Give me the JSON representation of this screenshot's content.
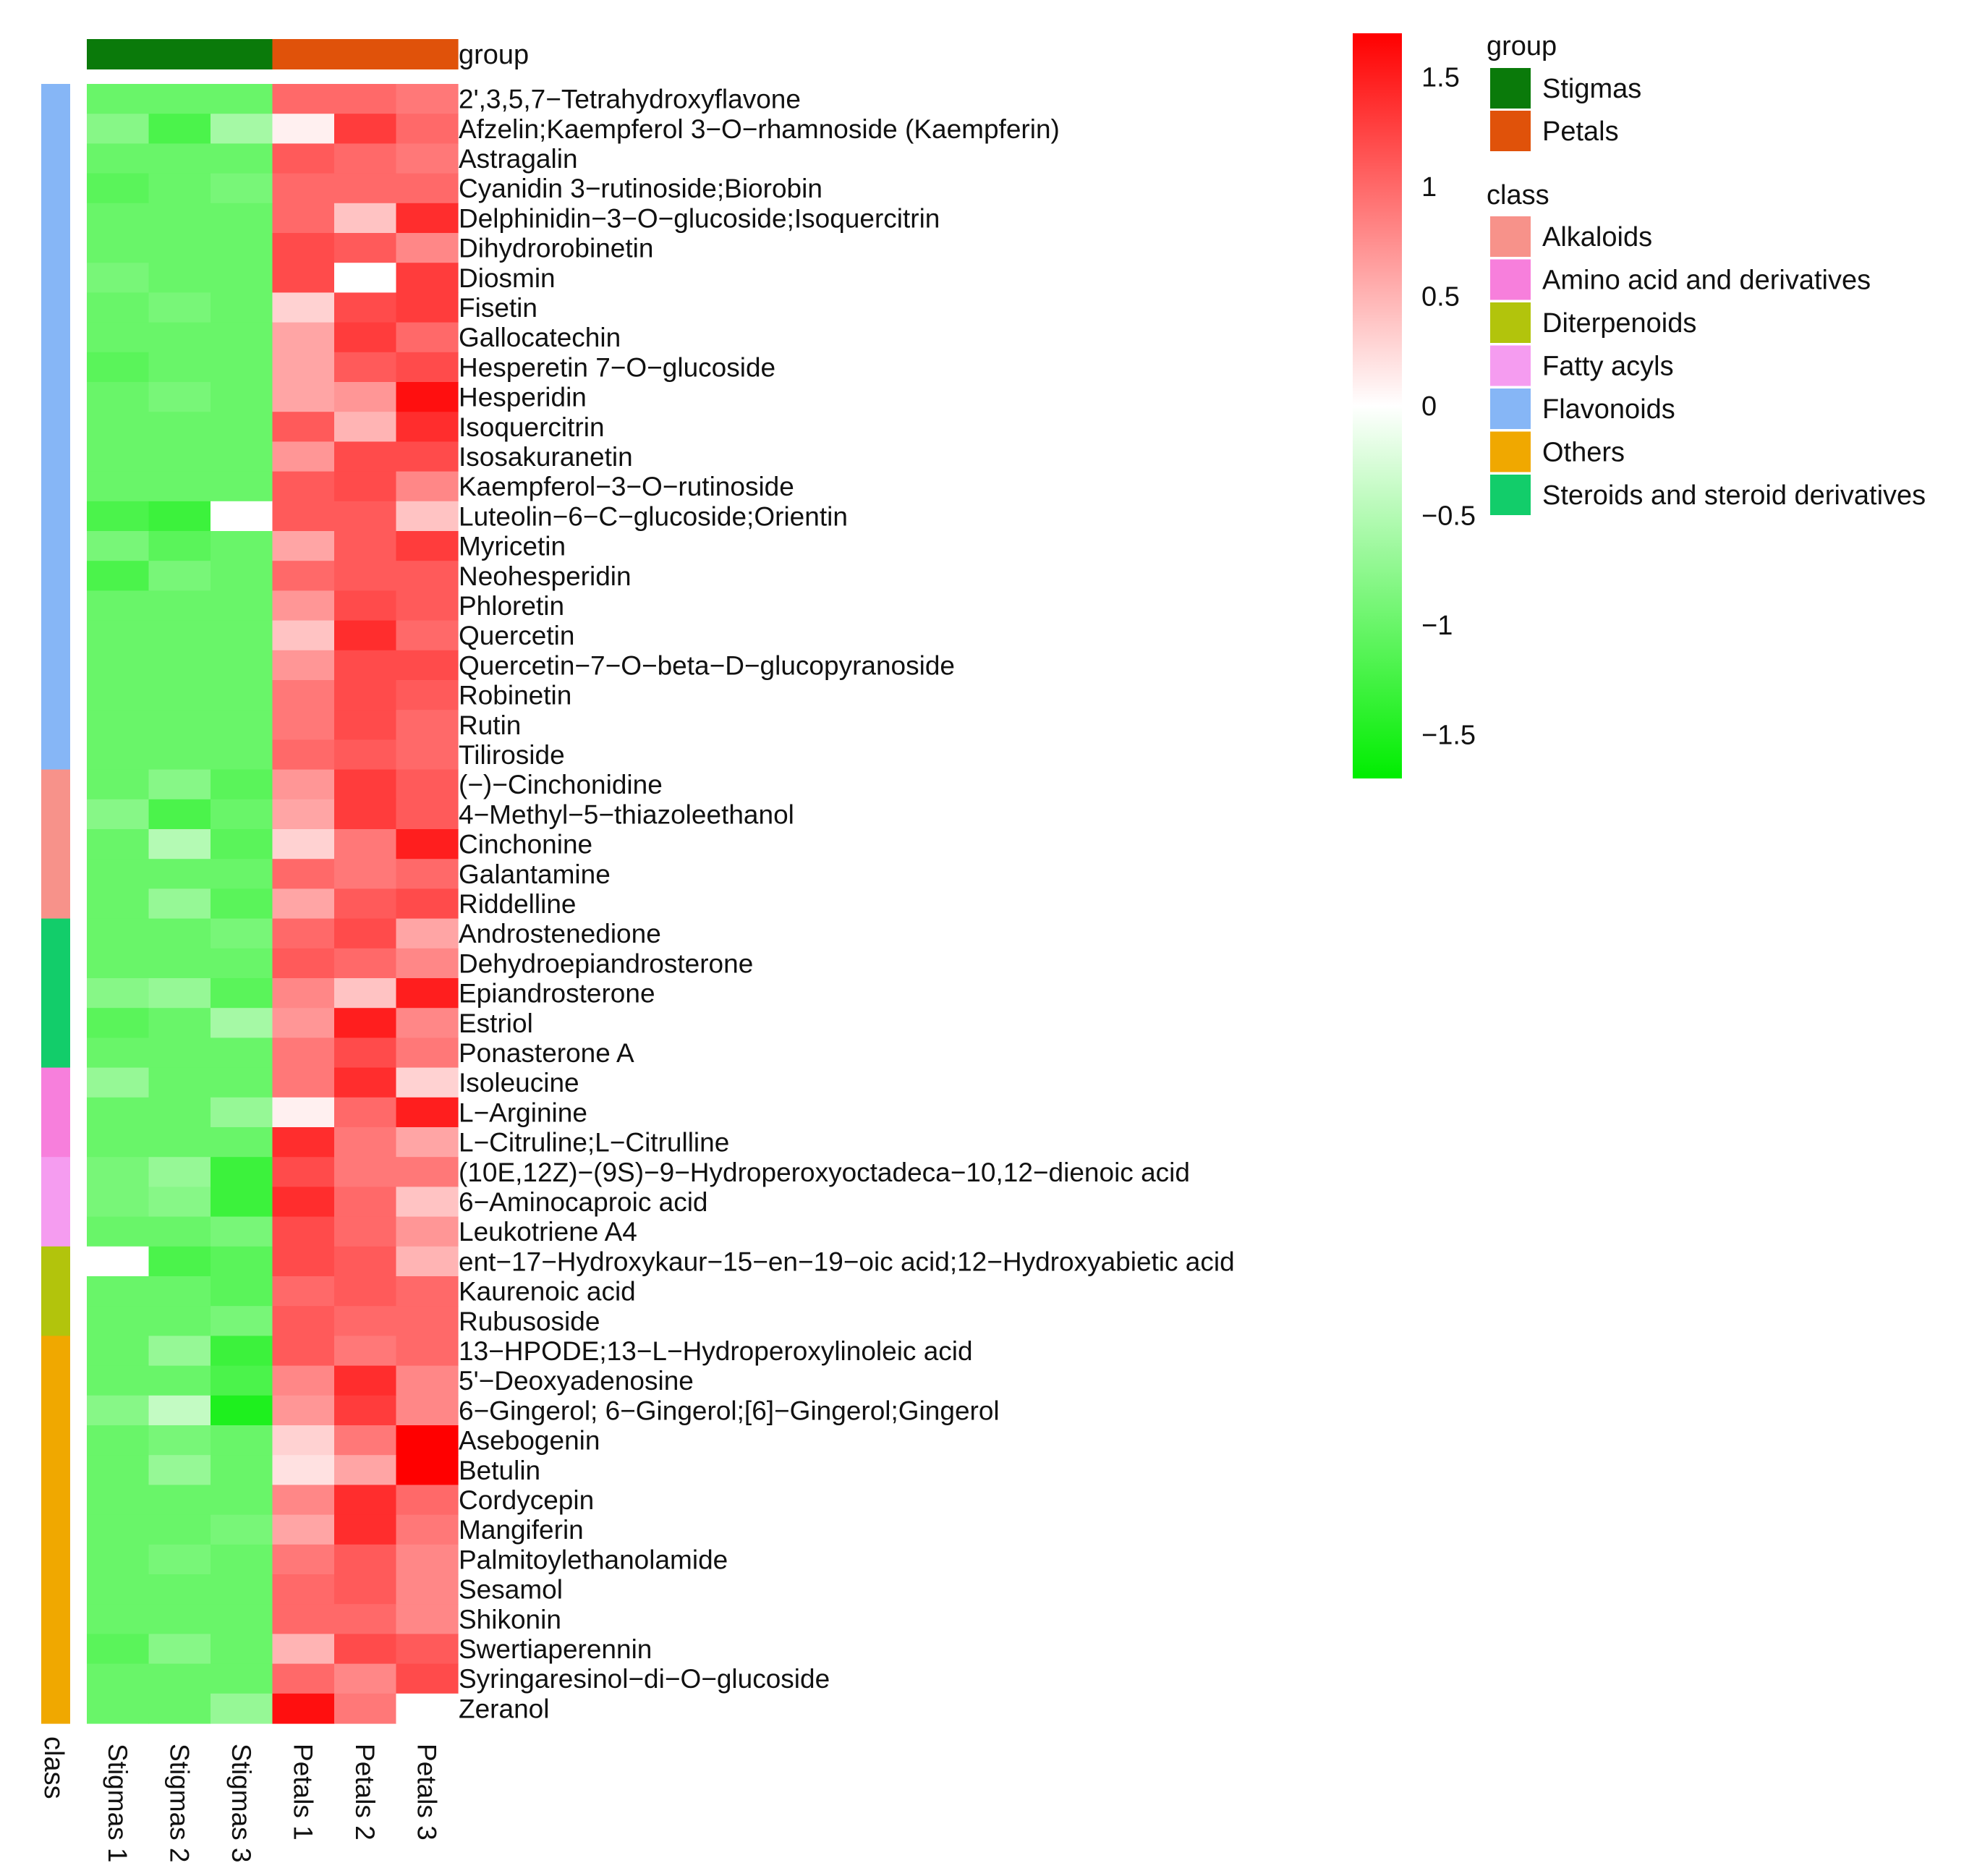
{
  "chart_data": {
    "type": "heatmap",
    "title": "",
    "columns": [
      "Stigmas 1",
      "Stigmas 2",
      "Stigmas 3",
      "Petals 1",
      "Petals 2",
      "Petals 3"
    ],
    "column_groups": [
      "Stigmas",
      "Stigmas",
      "Stigmas",
      "Petals",
      "Petals",
      "Petals"
    ],
    "group_annotation_label": "group",
    "class_annotation_label": "class",
    "colorbar": {
      "min": -1.7,
      "max": 1.7,
      "ticks": [
        -1.5,
        -1,
        -0.5,
        0,
        0.5,
        1,
        1.5
      ],
      "tick_labels": [
        "−1.5",
        "−1",
        "−0.5",
        "0",
        "0.5",
        "1",
        "1.5"
      ],
      "low_color": "#00ee00",
      "mid_color": "#ffffff",
      "high_color": "#ff0000"
    },
    "legend_group": {
      "title": "group",
      "items": [
        {
          "label": "Stigmas",
          "color": "#0a7a0a"
        },
        {
          "label": "Petals",
          "color": "#e0520a"
        }
      ]
    },
    "legend_class": {
      "title": "class",
      "items": [
        {
          "label": "Alkaloids",
          "color": "#f7928a"
        },
        {
          "label": "Amino acid and derivatives",
          "color": "#f77fdc"
        },
        {
          "label": "Diterpenoids",
          "color": "#b2c40c"
        },
        {
          "label": "Fatty acyls",
          "color": "#f59cf0"
        },
        {
          "label": "Flavonoids",
          "color": "#86b6f6"
        },
        {
          "label": "Others",
          "color": "#f0a800"
        },
        {
          "label": "Steroids and steroid derivatives",
          "color": "#12cd6a"
        }
      ]
    },
    "rows": [
      {
        "name": "2',3,5,7−Tetrahydroxyflavone",
        "class": "Flavonoids",
        "values": [
          -1.0,
          -1.0,
          -1.0,
          1.0,
          1.0,
          0.9
        ]
      },
      {
        "name": "Afzelin;Kaempferol 3−O−rhamnoside (Kaempferin)",
        "class": "Flavonoids",
        "values": [
          -0.8,
          -1.2,
          -0.6,
          0.1,
          1.3,
          1.0
        ]
      },
      {
        "name": "Astragalin",
        "class": "Flavonoids",
        "values": [
          -1.0,
          -1.0,
          -1.0,
          1.1,
          1.0,
          0.9
        ]
      },
      {
        "name": "Cyanidin 3−rutinoside;Biorobin",
        "class": "Flavonoids",
        "values": [
          -1.1,
          -1.0,
          -0.9,
          1.0,
          1.0,
          1.0
        ]
      },
      {
        "name": "Delphinidin−3−O−glucoside;Isoquercitrin",
        "class": "Flavonoids",
        "values": [
          -1.0,
          -1.0,
          -1.0,
          1.0,
          0.4,
          1.4
        ]
      },
      {
        "name": "Dihydrorobinetin",
        "class": "Flavonoids",
        "values": [
          -1.0,
          -1.0,
          -1.0,
          1.2,
          1.1,
          0.8
        ]
      },
      {
        "name": "Diosmin",
        "class": "Flavonoids",
        "values": [
          -0.9,
          -1.0,
          -1.0,
          1.2,
          0.0,
          1.3
        ]
      },
      {
        "name": "Fisetin",
        "class": "Flavonoids",
        "values": [
          -1.0,
          -0.9,
          -1.0,
          0.3,
          1.2,
          1.3
        ]
      },
      {
        "name": "Gallocatechin",
        "class": "Flavonoids",
        "values": [
          -1.0,
          -1.0,
          -1.0,
          0.6,
          1.3,
          1.0
        ]
      },
      {
        "name": "Hesperetin 7−O−glucoside",
        "class": "Flavonoids",
        "values": [
          -1.1,
          -1.0,
          -1.0,
          0.6,
          1.1,
          1.2
        ]
      },
      {
        "name": "Hesperidin",
        "class": "Flavonoids",
        "values": [
          -1.0,
          -0.9,
          -1.0,
          0.6,
          0.7,
          1.6
        ]
      },
      {
        "name": "Isoquercitrin",
        "class": "Flavonoids",
        "values": [
          -1.0,
          -1.0,
          -1.0,
          1.1,
          0.5,
          1.4
        ]
      },
      {
        "name": "Isosakuranetin",
        "class": "Flavonoids",
        "values": [
          -1.0,
          -1.0,
          -1.0,
          0.7,
          1.2,
          1.2
        ]
      },
      {
        "name": "Kaempferol−3−O−rutinoside",
        "class": "Flavonoids",
        "values": [
          -1.0,
          -1.0,
          -1.0,
          1.1,
          1.2,
          0.8
        ]
      },
      {
        "name": "Luteolin−6−C−glucoside;Orientin",
        "class": "Flavonoids",
        "values": [
          -1.2,
          -1.3,
          0.0,
          1.1,
          1.1,
          0.4
        ]
      },
      {
        "name": "Myricetin",
        "class": "Flavonoids",
        "values": [
          -0.9,
          -1.1,
          -1.0,
          0.6,
          1.1,
          1.3
        ]
      },
      {
        "name": "Neohesperidin",
        "class": "Flavonoids",
        "values": [
          -1.2,
          -0.9,
          -1.0,
          1.0,
          1.1,
          1.1
        ]
      },
      {
        "name": "Phloretin",
        "class": "Flavonoids",
        "values": [
          -1.0,
          -1.0,
          -1.0,
          0.7,
          1.2,
          1.1
        ]
      },
      {
        "name": "Quercetin",
        "class": "Flavonoids",
        "values": [
          -1.0,
          -1.0,
          -1.0,
          0.4,
          1.4,
          1.0
        ]
      },
      {
        "name": "Quercetin−7−O−beta−D−glucopyranoside",
        "class": "Flavonoids",
        "values": [
          -1.0,
          -1.0,
          -1.0,
          0.7,
          1.2,
          1.2
        ]
      },
      {
        "name": "Robinetin",
        "class": "Flavonoids",
        "values": [
          -1.0,
          -1.0,
          -1.0,
          0.9,
          1.2,
          1.1
        ]
      },
      {
        "name": "Rutin",
        "class": "Flavonoids",
        "values": [
          -1.0,
          -1.0,
          -1.0,
          0.9,
          1.2,
          1.0
        ]
      },
      {
        "name": "Tiliroside",
        "class": "Flavonoids",
        "values": [
          -1.0,
          -1.0,
          -1.0,
          1.0,
          1.1,
          1.0
        ]
      },
      {
        "name": "(−)−Cinchonidine",
        "class": "Alkaloids",
        "values": [
          -1.0,
          -0.8,
          -1.1,
          0.7,
          1.3,
          1.1
        ]
      },
      {
        "name": "4−Methyl−5−thiazoleethanol",
        "class": "Alkaloids",
        "values": [
          -0.8,
          -1.2,
          -1.0,
          0.6,
          1.3,
          1.1
        ]
      },
      {
        "name": "Cinchonine",
        "class": "Alkaloids",
        "values": [
          -1.0,
          -0.5,
          -1.1,
          0.3,
          0.9,
          1.5
        ]
      },
      {
        "name": "Galantamine",
        "class": "Alkaloids",
        "values": [
          -1.0,
          -1.0,
          -1.0,
          1.0,
          0.9,
          1.0
        ]
      },
      {
        "name": "Riddelline",
        "class": "Alkaloids",
        "values": [
          -1.0,
          -0.7,
          -1.1,
          0.6,
          1.1,
          1.2
        ]
      },
      {
        "name": "Androstenedione",
        "class": "Steroids and steroid derivatives",
        "values": [
          -1.0,
          -1.0,
          -0.9,
          1.0,
          1.2,
          0.6
        ]
      },
      {
        "name": "Dehydroepiandrosterone",
        "class": "Steroids and steroid derivatives",
        "values": [
          -1.0,
          -1.0,
          -1.0,
          1.1,
          1.0,
          0.8
        ]
      },
      {
        "name": "Epiandrosterone",
        "class": "Steroids and steroid derivatives",
        "values": [
          -0.8,
          -0.7,
          -1.1,
          0.8,
          0.4,
          1.5
        ]
      },
      {
        "name": "Estriol",
        "class": "Steroids and steroid derivatives",
        "values": [
          -1.1,
          -1.0,
          -0.6,
          0.7,
          1.5,
          0.8
        ]
      },
      {
        "name": "Ponasterone A",
        "class": "Steroids and steroid derivatives",
        "values": [
          -1.0,
          -1.0,
          -1.0,
          0.9,
          1.2,
          0.9
        ]
      },
      {
        "name": "Isoleucine",
        "class": "Amino acid and derivatives",
        "values": [
          -0.7,
          -1.0,
          -1.0,
          0.9,
          1.4,
          0.3
        ]
      },
      {
        "name": "L−Arginine",
        "class": "Amino acid and derivatives",
        "values": [
          -1.0,
          -1.0,
          -0.7,
          0.1,
          1.0,
          1.5
        ]
      },
      {
        "name": "L−Citruline;L−Citrulline",
        "class": "Amino acid and derivatives",
        "values": [
          -1.0,
          -1.0,
          -1.0,
          1.4,
          0.9,
          0.6
        ]
      },
      {
        "name": "(10E,12Z)−(9S)−9−Hydroperoxyoctadeca−10,12−dienoic acid",
        "class": "Fatty acyls",
        "values": [
          -0.9,
          -0.7,
          -1.3,
          1.2,
          0.9,
          0.9
        ]
      },
      {
        "name": "6−Aminocaproic acid",
        "class": "Fatty acyls",
        "values": [
          -0.9,
          -0.8,
          -1.3,
          1.4,
          1.0,
          0.4
        ]
      },
      {
        "name": "Leukotriene A4",
        "class": "Fatty acyls",
        "values": [
          -1.0,
          -1.0,
          -0.9,
          1.2,
          1.0,
          0.7
        ]
      },
      {
        "name": "ent−17−Hydroxykaur−15−en−19−oic acid;12−Hydroxyabietic acid",
        "class": "Diterpenoids",
        "values": [
          0.0,
          -1.2,
          -1.1,
          1.2,
          1.1,
          0.5
        ]
      },
      {
        "name": "Kaurenoic acid",
        "class": "Diterpenoids",
        "values": [
          -1.0,
          -1.0,
          -1.1,
          1.0,
          1.1,
          1.0
        ]
      },
      {
        "name": "Rubusoside",
        "class": "Diterpenoids",
        "values": [
          -1.0,
          -1.0,
          -0.9,
          1.1,
          1.0,
          1.0
        ]
      },
      {
        "name": "13−HPODE;13−L−Hydroperoxylinoleic acid",
        "class": "Others",
        "values": [
          -1.0,
          -0.7,
          -1.3,
          1.1,
          0.9,
          1.0
        ]
      },
      {
        "name": "5'−Deoxyadenosine",
        "class": "Others",
        "values": [
          -1.0,
          -1.0,
          -1.2,
          0.8,
          1.4,
          0.8
        ]
      },
      {
        "name": "6−Gingerol; 6−Gingerol;[6]−Gingerol;Gingerol",
        "class": "Others",
        "values": [
          -0.8,
          -0.4,
          -1.5,
          0.7,
          1.3,
          0.8
        ]
      },
      {
        "name": "Asebogenin",
        "class": "Others",
        "values": [
          -1.0,
          -0.9,
          -1.0,
          0.3,
          0.9,
          1.7
        ]
      },
      {
        "name": "Betulin",
        "class": "Others",
        "values": [
          -1.0,
          -0.7,
          -1.0,
          0.2,
          0.6,
          1.7
        ]
      },
      {
        "name": "Cordycepin",
        "class": "Others",
        "values": [
          -1.0,
          -1.0,
          -1.0,
          0.8,
          1.4,
          1.0
        ]
      },
      {
        "name": "Mangiferin",
        "class": "Others",
        "values": [
          -1.0,
          -1.0,
          -0.9,
          0.6,
          1.4,
          0.9
        ]
      },
      {
        "name": "Palmitoylethanolamide",
        "class": "Others",
        "values": [
          -1.0,
          -0.9,
          -1.0,
          0.9,
          1.1,
          0.8
        ]
      },
      {
        "name": "Sesamol",
        "class": "Others",
        "values": [
          -1.0,
          -1.0,
          -1.0,
          1.0,
          1.1,
          0.8
        ]
      },
      {
        "name": "Shikonin",
        "class": "Others",
        "values": [
          -1.0,
          -1.0,
          -1.0,
          1.0,
          1.0,
          0.8
        ]
      },
      {
        "name": "Swertiaperennin",
        "class": "Others",
        "values": [
          -1.1,
          -0.8,
          -1.0,
          0.5,
          1.2,
          1.1
        ]
      },
      {
        "name": "Syringaresinol−di−O−glucoside",
        "class": "Others",
        "values": [
          -1.0,
          -1.0,
          -1.0,
          1.0,
          0.8,
          1.2
        ]
      },
      {
        "name": "Zeranol",
        "class": "Others",
        "values": [
          -1.0,
          -1.0,
          -0.7,
          1.6,
          0.9,
          0.0
        ]
      }
    ]
  }
}
